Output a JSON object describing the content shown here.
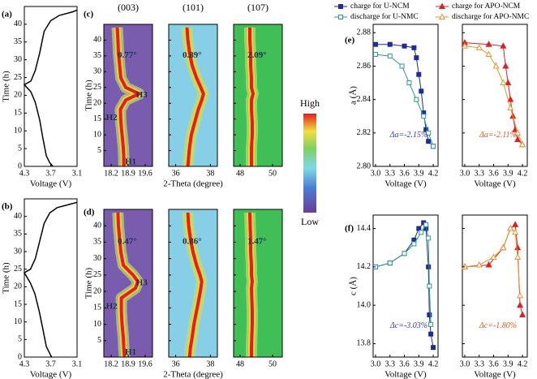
{
  "chart_data": [
    {
      "type": "line",
      "label": "(a)",
      "xlabel": "Voltage (V)",
      "ylabel": "Time (h)",
      "xlim": [
        4.3,
        3.1
      ],
      "xticks": [
        4.3,
        3.7,
        3.1
      ],
      "ylim": [
        0,
        45
      ],
      "yticks": [
        0,
        5,
        10,
        15,
        20,
        25,
        30,
        35,
        40
      ],
      "series": [
        {
          "color": "#000000",
          "x": [
            3.65,
            3.72,
            3.8,
            3.88,
            3.95,
            4.05,
            4.15,
            4.3,
            4.15,
            4.05,
            3.95,
            3.85,
            3.7,
            3.5,
            3.2,
            3.1
          ],
          "values": [
            0,
            1,
            3,
            8,
            13,
            18,
            21,
            23,
            24,
            27,
            32,
            38,
            41,
            42.5,
            43.5,
            44
          ]
        }
      ]
    },
    {
      "type": "line",
      "label": "(b)",
      "xlabel": "Voltage (V)",
      "ylabel": "Time (h)",
      "xlim": [
        4.3,
        3.1
      ],
      "xticks": [
        4.3,
        3.7,
        3.1
      ],
      "ylim": [
        0,
        45
      ],
      "yticks": [
        0,
        5,
        10,
        15,
        20,
        25,
        30,
        35,
        40
      ],
      "series": [
        {
          "color": "#000000",
          "x": [
            3.68,
            3.72,
            3.8,
            3.88,
            3.96,
            4.06,
            4.16,
            4.3,
            4.16,
            4.05,
            3.95,
            3.85,
            3.72,
            3.55,
            3.25,
            3.1
          ],
          "values": [
            0,
            1,
            3,
            8,
            13,
            18,
            21,
            24,
            25,
            28,
            33,
            38,
            41,
            42.5,
            43.5,
            44
          ]
        }
      ]
    },
    {
      "type": "heatmap",
      "label": "(c)",
      "xlabel": "2-Theta (degree)",
      "ylabel": "Time (h)",
      "ylim": [
        0,
        45
      ],
      "yticks": [
        5,
        10,
        15,
        20,
        25,
        30,
        35,
        40
      ],
      "colorbar": {
        "high": "High",
        "low": "Low"
      },
      "panels": [
        {
          "title": "(003)",
          "xlim": [
            17.9,
            19.9
          ],
          "xticks": [
            18.2,
            18.9,
            19.6
          ],
          "background": "#7a5cae",
          "color": "#e02020",
          "values": [
            0,
            3,
            6,
            10,
            14,
            18,
            21,
            23,
            25,
            28,
            32,
            36,
            40,
            44
          ],
          "x": [
            18.72,
            18.72,
            18.7,
            18.65,
            18.6,
            18.58,
            18.8,
            19.35,
            18.8,
            18.6,
            18.55,
            18.5,
            18.48,
            18.45
          ],
          "annotations": [
            "0.77°",
            "H3",
            "H2",
            "H1"
          ]
        },
        {
          "title": "(101)",
          "xlim": [
            35.6,
            38.4
          ],
          "xticks": [
            36,
            38
          ],
          "background": "#86cfe6",
          "color": "#e02020",
          "values": [
            0,
            3,
            6,
            10,
            14,
            18,
            21,
            23,
            25,
            28,
            32,
            36,
            40,
            44
          ],
          "x": [
            36.7,
            36.75,
            36.8,
            36.9,
            37.1,
            37.3,
            37.5,
            37.6,
            37.45,
            37.2,
            36.95,
            36.8,
            36.7,
            36.65
          ],
          "annotations": [
            "0.89°"
          ]
        },
        {
          "title": "(107)",
          "xlim": [
            47.6,
            50.6
          ],
          "xticks": [
            48,
            50
          ],
          "background": "#3fbf55",
          "color": "#e02020",
          "values": [
            0,
            3,
            6,
            10,
            14,
            18,
            21,
            23,
            25,
            28,
            32,
            36,
            40,
            44
          ],
          "x": [
            48.7,
            48.7,
            48.7,
            48.75,
            48.75,
            48.7,
            48.7,
            48.8,
            48.7,
            48.7,
            48.65,
            48.65,
            48.6,
            48.6
          ],
          "annotations": [
            "2.09°"
          ]
        }
      ]
    },
    {
      "type": "heatmap",
      "label": "(d)",
      "xlabel": "2-Theta (degree)",
      "ylabel": "Time (h)",
      "ylim": [
        0,
        45
      ],
      "yticks": [
        5,
        10,
        15,
        20,
        25,
        30,
        35,
        40
      ],
      "panels": [
        {
          "xlim": [
            17.9,
            19.9
          ],
          "xticks": [
            18.2,
            18.9,
            19.6
          ],
          "background": "#7a5cae",
          "color": "#e02020",
          "values": [
            0,
            3,
            6,
            10,
            14,
            18,
            21,
            23,
            25,
            28,
            32,
            36,
            40,
            44
          ],
          "x": [
            18.75,
            18.72,
            18.7,
            18.65,
            18.62,
            18.62,
            19.2,
            19.3,
            19.1,
            18.7,
            18.6,
            18.55,
            18.5,
            18.48
          ],
          "annotations": [
            "0.47°",
            "H3",
            "H2",
            "H1"
          ]
        },
        {
          "xlim": [
            35.6,
            38.4
          ],
          "xticks": [
            36,
            38
          ],
          "background": "#86cfe6",
          "color": "#e02020",
          "values": [
            0,
            3,
            6,
            10,
            14,
            18,
            21,
            23,
            25,
            28,
            32,
            36,
            40,
            44
          ],
          "x": [
            36.8,
            36.85,
            36.95,
            37.05,
            37.2,
            37.35,
            37.45,
            37.5,
            37.4,
            37.2,
            37.0,
            36.85,
            36.75,
            36.7
          ],
          "annotations": [
            "0.86°"
          ]
        },
        {
          "xlim": [
            47.6,
            50.6
          ],
          "xticks": [
            48,
            50
          ],
          "background": "#3fbf55",
          "color": "#e02020",
          "values": [
            0,
            3,
            6,
            10,
            14,
            18,
            21,
            23,
            25,
            28,
            32,
            36,
            40,
            44
          ],
          "x": [
            48.7,
            48.7,
            48.72,
            48.75,
            48.75,
            48.72,
            48.7,
            48.75,
            48.7,
            48.7,
            48.65,
            48.65,
            48.62,
            48.6
          ],
          "annotations": [
            "1.47°"
          ]
        }
      ]
    },
    {
      "type": "scatter",
      "label": "(e)",
      "xlabel": "Voltage (V)",
      "ylabel": "a (Å)",
      "xlim": [
        2.95,
        4.3
      ],
      "xticks": [
        {
          "value": 3,
          "label": "3.0"
        },
        3.3,
        3.6,
        3.9,
        4.2
      ],
      "ylim": [
        2.8,
        2.885
      ],
      "yticks": [
        {
          "value": 2.8,
          "label": "2.80"
        },
        2.82,
        2.84,
        2.86,
        2.88
      ],
      "panels": [
        {
          "annotation": "Δa=-2.15%",
          "annotation_color": "#3a3ab8",
          "series": [
            {
              "name": "charge for U-NCM",
              "color": "#1f2a9c",
              "marker": "square",
              "filled": true,
              "x": [
                3.0,
                3.3,
                3.6,
                3.8,
                3.85,
                3.9,
                3.95,
                4.0,
                4.05,
                4.1,
                4.2
              ],
              "values": [
                2.873,
                2.873,
                2.872,
                2.871,
                2.865,
                2.855,
                2.845,
                2.832,
                2.822,
                2.815,
                2.812
              ]
            },
            {
              "name": "discharge for U-NMC",
              "color": "#2a9a8a",
              "marker": "square",
              "filled": false,
              "x": [
                4.2,
                4.1,
                4.0,
                3.85,
                3.7,
                3.55,
                3.3,
                3.0
              ],
              "values": [
                2.812,
                2.82,
                2.83,
                2.84,
                2.85,
                2.86,
                2.866,
                2.867
              ]
            }
          ]
        },
        {
          "annotation": "Δa=-2.11%",
          "annotation_color": "#e05a20",
          "series": [
            {
              "name": "charge for APO-NCM",
              "color": "#e02020",
              "marker": "triangle",
              "filled": true,
              "x": [
                3.0,
                3.5,
                3.8,
                3.85,
                3.9,
                3.95,
                4.0,
                4.05,
                4.1,
                4.2
              ],
              "values": [
                2.874,
                2.873,
                2.872,
                2.86,
                2.85,
                2.84,
                2.83,
                2.822,
                2.816,
                2.813
              ]
            },
            {
              "name": "discharge for APO-NMC",
              "color": "#f0922a",
              "marker": "triangle",
              "filled": false,
              "x": [
                4.2,
                4.1,
                3.95,
                3.8,
                3.65,
                3.5,
                3.3,
                3.0
              ],
              "values": [
                2.813,
                2.82,
                2.835,
                2.85,
                2.86,
                2.867,
                2.871,
                2.872
              ]
            }
          ]
        }
      ]
    },
    {
      "type": "scatter",
      "label": "(f)",
      "xlabel": "Voltage (V)",
      "ylabel": "c (Å)",
      "xlim": [
        2.95,
        4.3
      ],
      "xticks": [
        {
          "value": 3,
          "label": "3.0"
        },
        3.3,
        3.6,
        3.9,
        4.2
      ],
      "ylim": [
        13.73,
        14.47
      ],
      "yticks": [
        13.8,
        {
          "value": 14,
          "label": "14.0"
        },
        14.2,
        14.4
      ],
      "panels": [
        {
          "annotation": "Δc=-3.03%",
          "annotation_color": "#3a3ab8",
          "series": [
            {
              "color": "#1f2a9c",
              "marker": "square",
              "filled": true,
              "x": [
                3.0,
                3.3,
                3.6,
                3.8,
                3.9,
                4.0,
                4.05,
                4.1,
                4.12,
                4.15,
                4.2
              ],
              "values": [
                14.2,
                14.22,
                14.27,
                14.34,
                14.4,
                14.43,
                14.4,
                14.2,
                13.95,
                13.85,
                13.78
              ]
            },
            {
              "color": "#2a9a8a",
              "marker": "square",
              "filled": false,
              "x": [
                4.15,
                4.12,
                4.1,
                4.05,
                3.95,
                3.8,
                3.6,
                3.3,
                3.0
              ],
              "values": [
                13.9,
                14.1,
                14.35,
                14.42,
                14.38,
                14.32,
                14.27,
                14.22,
                14.2
              ]
            }
          ]
        },
        {
          "annotation": "Δc=-1.80%",
          "annotation_color": "#e05a20",
          "series": [
            {
              "color": "#e02020",
              "marker": "triangle",
              "filled": true,
              "x": [
                3.0,
                3.5,
                3.8,
                3.95,
                4.05,
                4.1,
                4.15,
                4.2
              ],
              "values": [
                14.2,
                14.21,
                14.3,
                14.4,
                14.42,
                14.3,
                14.0,
                13.95
              ]
            },
            {
              "color": "#f0922a",
              "marker": "triangle",
              "filled": false,
              "x": [
                4.15,
                4.1,
                4.05,
                3.95,
                3.8,
                3.6,
                3.3,
                3.0
              ],
              "values": [
                14.05,
                14.25,
                14.38,
                14.4,
                14.3,
                14.25,
                14.21,
                14.2
              ]
            }
          ]
        }
      ]
    }
  ]
}
